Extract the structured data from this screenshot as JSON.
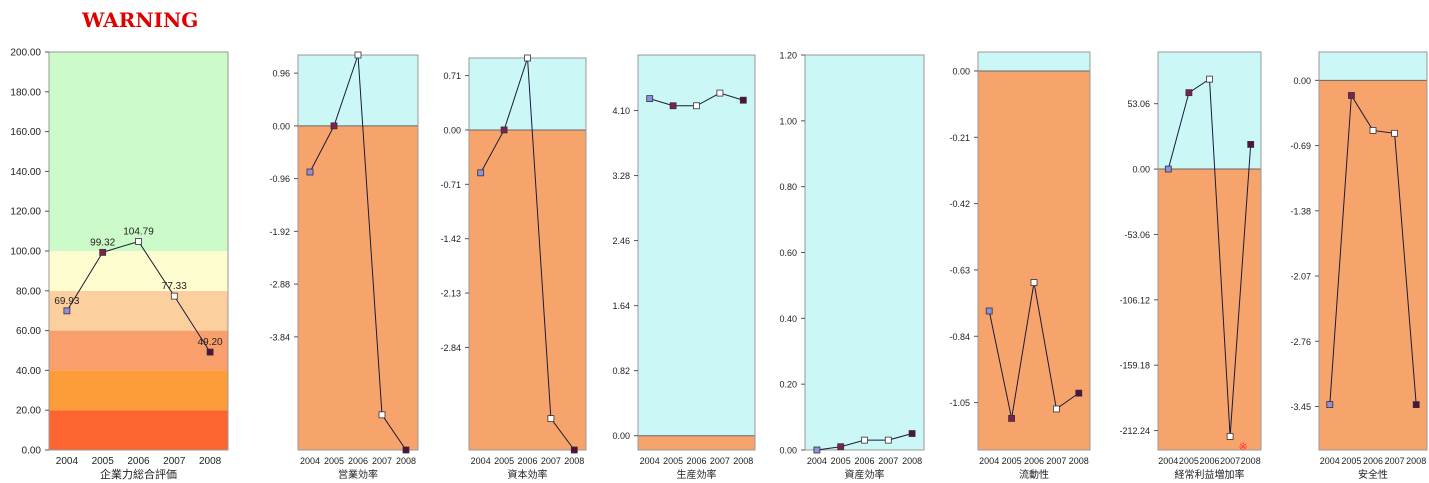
{
  "header": {
    "warning": "WARNING"
  },
  "colors": {
    "zone_blue": "#ccf7f7",
    "zone_orange": "#f7a46c",
    "score_bands": [
      "#fc6430",
      "#fd9d3a",
      "#f89f6b",
      "#fccf9e",
      "#fdfdd0",
      "#ccfac8"
    ],
    "marker_colors": {
      "2004": "#9090e0",
      "2005": "#802050",
      "2006": "#ffffff",
      "2007": "#ffffff",
      "2008": "#501040"
    },
    "warning_mark": "#ff3030"
  },
  "chart_data": [
    {
      "type": "line",
      "xlabel": "企業力総合評価",
      "x": [
        "2004",
        "2005",
        "2006",
        "2007",
        "2008"
      ],
      "values": [
        69.93,
        99.32,
        104.79,
        77.33,
        49.2
      ],
      "data_labels": [
        "69.93",
        "99.32",
        "104.79",
        "77.33",
        "49.20"
      ],
      "yticks": [
        "0.00",
        "20.00",
        "40.00",
        "60.00",
        "80.00",
        "100.00",
        "120.00",
        "140.00",
        "160.00",
        "180.00",
        "200.00"
      ],
      "ylim": [
        0,
        200
      ],
      "bands": [
        0,
        20,
        40,
        60,
        80,
        100,
        200
      ]
    },
    {
      "type": "line",
      "xlabel": "営業効率",
      "x": [
        "2004",
        "2005",
        "2006",
        "2007",
        "2008"
      ],
      "values": [
        -0.84,
        0.0,
        1.29,
        -5.26,
        -5.9
      ],
      "yticks": [
        "0.96",
        "0.00",
        "-0.96",
        "-1.92",
        "-2.88",
        "-3.84"
      ],
      "ylim": [
        -5.9,
        1.29
      ],
      "warning_line": 0
    },
    {
      "type": "line",
      "xlabel": "資本効率",
      "x": [
        "2004",
        "2005",
        "2006",
        "2007",
        "2008"
      ],
      "values": [
        -0.56,
        0.0,
        0.94,
        -3.77,
        -4.18
      ],
      "yticks": [
        "0.71",
        "0.00",
        "-0.71",
        "-1.42",
        "-2.13",
        "-2.84"
      ],
      "ylim": [
        -4.18,
        0.94
      ],
      "warning_line": 0
    },
    {
      "type": "line",
      "xlabel": "生産効率",
      "x": [
        "2004",
        "2005",
        "2006",
        "2007",
        "2008"
      ],
      "values": [
        4.25,
        4.16,
        4.16,
        4.32,
        4.23
      ],
      "yticks": [
        "4.10",
        "3.28",
        "2.46",
        "1.64",
        "0.82",
        "0.00"
      ],
      "ylim": [
        -0.18,
        4.8
      ],
      "warning_line": 0
    },
    {
      "type": "line",
      "xlabel": "資産効率",
      "x": [
        "2004",
        "2005",
        "2006",
        "2007",
        "2008"
      ],
      "values": [
        0.0,
        0.01,
        0.03,
        0.03,
        0.05
      ],
      "yticks": [
        "1.20",
        "1.00",
        "0.80",
        "0.60",
        "0.40",
        "0.20",
        "0.00"
      ],
      "ylim": [
        0,
        1.2
      ],
      "warning_line": 0
    },
    {
      "type": "line",
      "xlabel": "流動性",
      "x": [
        "2004",
        "2005",
        "2006",
        "2007",
        "2008"
      ],
      "values": [
        -0.76,
        -1.1,
        -0.67,
        -1.07,
        -1.02
      ],
      "yticks": [
        "0.00",
        "-0.21",
        "-0.42",
        "-0.63",
        "-0.84",
        "-1.05"
      ],
      "ylim": [
        -1.2,
        0.06
      ],
      "warning_line": 0
    },
    {
      "type": "line",
      "xlabel": "経常利益増加率",
      "x": [
        "2004",
        "2005",
        "2006",
        "2007",
        "2008"
      ],
      "values": [
        0.0,
        62.0,
        73.0,
        -217.0,
        20.0
      ],
      "yticks": [
        "53.06",
        "0.00",
        "-53.06",
        "-106.12",
        "-159.18",
        "-212.24"
      ],
      "ylim": [
        -228,
        95
      ],
      "warning_line": 0,
      "annotation": "※"
    },
    {
      "type": "line",
      "xlabel": "安全性",
      "x": [
        "2004",
        "2005",
        "2006",
        "2007",
        "2008"
      ],
      "values": [
        -3.43,
        -0.16,
        -0.53,
        -0.56,
        -3.43
      ],
      "yticks": [
        "0.00",
        "-0.69",
        "-1.38",
        "-2.07",
        "-2.76",
        "-3.45"
      ],
      "ylim": [
        -3.91,
        0.3
      ],
      "warning_line": 0
    }
  ]
}
